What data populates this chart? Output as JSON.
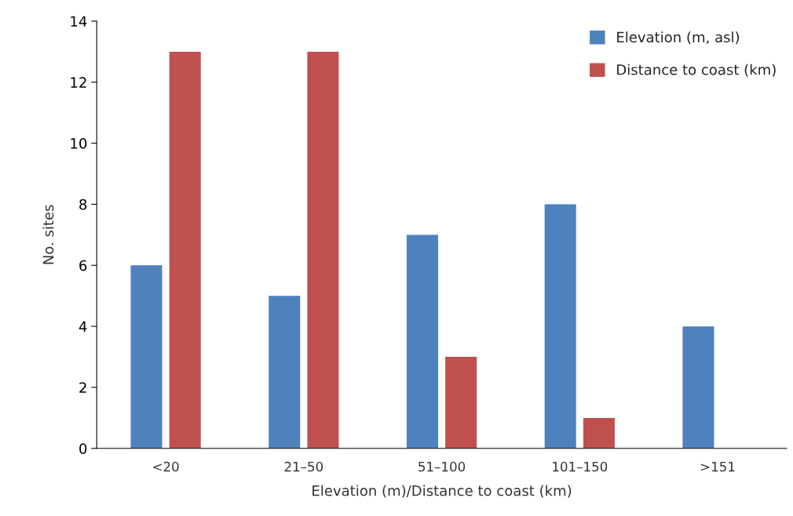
{
  "chart_data": {
    "type": "bar",
    "xlabel": "Elevation (m)/Distance to coast (km)",
    "ylabel": "No. sites",
    "categories": [
      "<20",
      "21–50",
      "51–100",
      "101–150",
      ">151"
    ],
    "series": [
      {
        "name": "Elevation (m, asl)",
        "color": "#4f81bd",
        "values": [
          6,
          5,
          7,
          8,
          4
        ]
      },
      {
        "name": "Distance to coast (km)",
        "color": "#c0504d",
        "values": [
          13,
          13,
          3,
          1,
          null
        ]
      }
    ],
    "ylim": [
      0,
      14
    ],
    "yticks": [
      0,
      2,
      4,
      6,
      8,
      10,
      12,
      14
    ],
    "grid": false,
    "legend": "top right"
  }
}
